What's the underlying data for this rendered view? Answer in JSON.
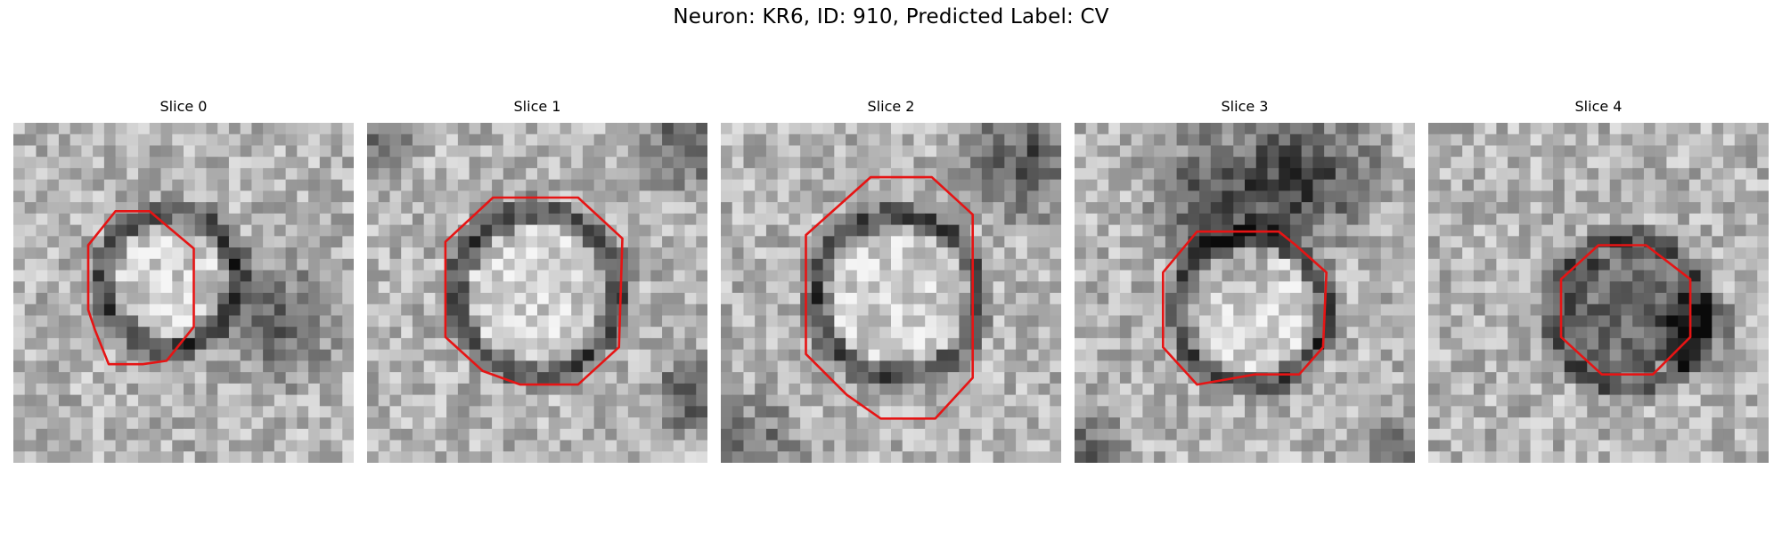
{
  "figure": {
    "title": "Neuron: KR6, ID: 910, Predicted Label: CV"
  },
  "colors": {
    "contour": "#e61414",
    "background": "#ffffff"
  },
  "panels": [
    {
      "title": "Slice 0"
    },
    {
      "title": "Slice 1"
    },
    {
      "title": "Slice 2"
    },
    {
      "title": "Slice 3"
    },
    {
      "title": "Slice 4"
    }
  ]
}
